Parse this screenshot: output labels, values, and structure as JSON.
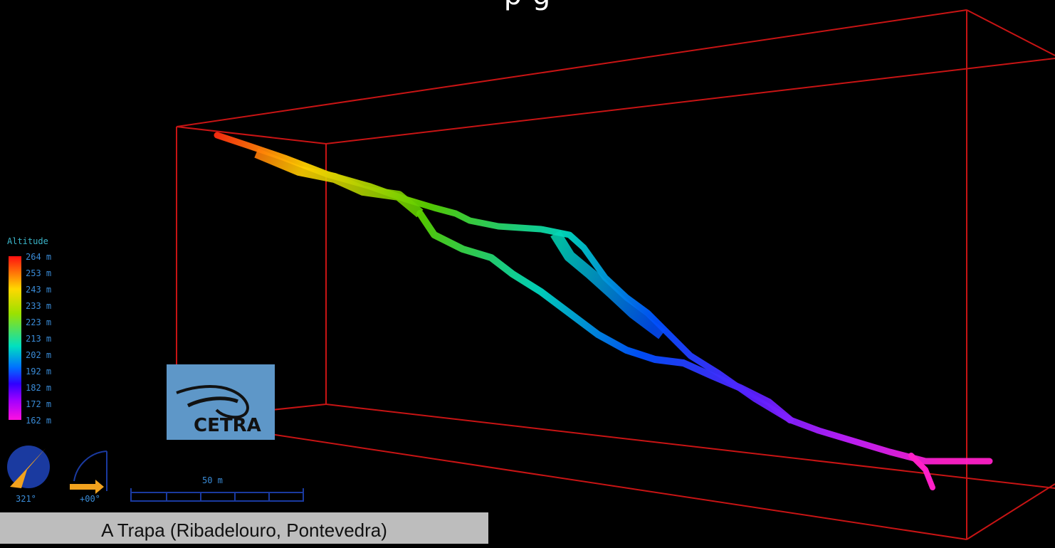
{
  "title_fragment": "p                g",
  "legend": {
    "title": "Altitude",
    "levels": [
      "264 m",
      "253 m",
      "243 m",
      "233 m",
      "223 m",
      "213 m",
      "202 m",
      "192 m",
      "182 m",
      "172 m",
      "162 m"
    ]
  },
  "compass": {
    "heading_label": "321°"
  },
  "tilt": {
    "label": "+00°"
  },
  "scale_bar": {
    "label": "50 m"
  },
  "caption": "A Trapa (Ribadelouro, Pontevedra)",
  "logo": {
    "text": "CETRA"
  },
  "colors": {
    "box": "#c81414",
    "legend_text": "#3a8cd8",
    "caption_bg": "#bdbdbd",
    "logo_bg": "#5e97c8",
    "compass_needle": "#f2a21e"
  }
}
